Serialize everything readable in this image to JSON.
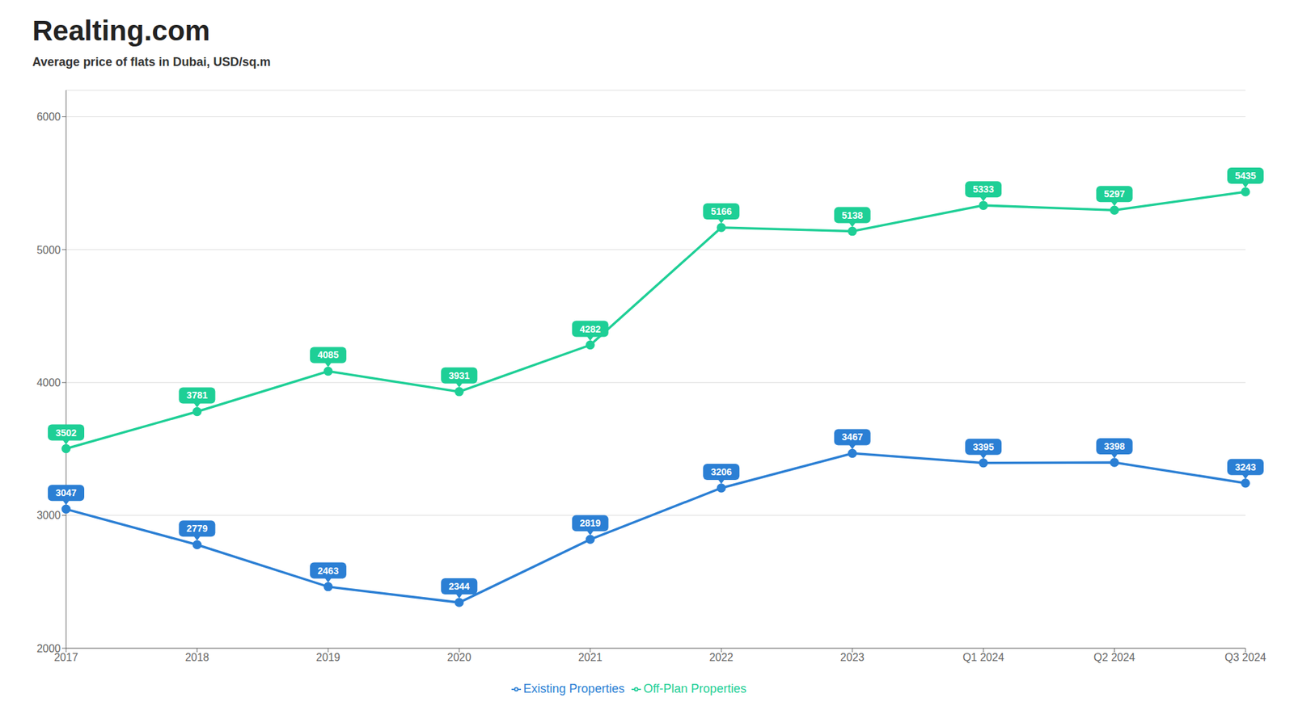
{
  "chart_data": {
    "type": "line",
    "title": "Realting.com",
    "subtitle": "Average price of flats in Dubai, USD/sq.m",
    "categories": [
      "2017",
      "2018",
      "2019",
      "2020",
      "2021",
      "2022",
      "2023",
      "Q1 2024",
      "Q2 2024",
      "Q3 2024"
    ],
    "series": [
      {
        "name": "Off-Plan Properties",
        "color": "#1ecf96",
        "values": [
          3502,
          3781,
          4085,
          3931,
          4282,
          5166,
          5138,
          5333,
          5297,
          5435
        ]
      },
      {
        "name": "Existing Properties",
        "color": "#2b7fd4",
        "values": [
          3047,
          2779,
          2463,
          2344,
          2819,
          3206,
          3467,
          3395,
          3398,
          3243
        ]
      }
    ],
    "ylim": [
      2000,
      6200
    ],
    "yticks": [
      2000,
      3000,
      4000,
      5000,
      6000
    ],
    "grid": true,
    "legend": "bottom",
    "data_labels": true,
    "marker": "circle"
  }
}
